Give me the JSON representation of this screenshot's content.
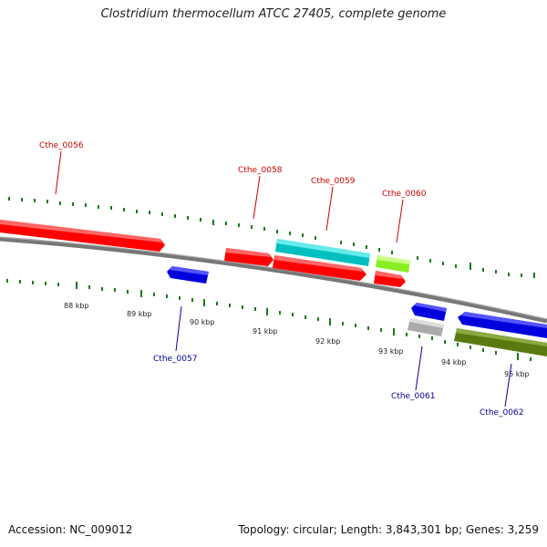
{
  "title": "Clostridium thermocellum ATCC 27405, complete genome",
  "footer": {
    "accession": "Accession: NC_009012",
    "stats": "Topology: circular; Length: 3,843,301 bp; Genes: 3,259"
  },
  "colors": {
    "forward_label": "#cc0000",
    "reverse_label": "#000099",
    "tick": "#1a7a1a",
    "backbone": "#777777"
  },
  "ticks": [
    {
      "label": "88 kbp"
    },
    {
      "label": "89 kbp"
    },
    {
      "label": "90 kbp"
    },
    {
      "label": "91 kbp"
    },
    {
      "label": "92 kbp"
    },
    {
      "label": "93 kbp"
    },
    {
      "label": "94 kbp"
    },
    {
      "label": "95 kbp"
    }
  ],
  "genes": [
    {
      "name": "Cthe_0056",
      "strand": "+",
      "color": "#ff0000"
    },
    {
      "name": "Cthe_0057",
      "strand": "-",
      "color": "#0000ee"
    },
    {
      "name": "Cthe_0058",
      "strand": "+",
      "color": "#ff0000"
    },
    {
      "name": "Cthe_0059",
      "strand": "+",
      "color": "#00cccc"
    },
    {
      "name": "Cthe_0060",
      "strand": "+",
      "color": "#99ff33"
    },
    {
      "name": "Cthe_0061",
      "strand": "-",
      "color": "#0000ee"
    },
    {
      "name": "Cthe_0062",
      "strand": "-",
      "color": "#0000ee"
    }
  ]
}
